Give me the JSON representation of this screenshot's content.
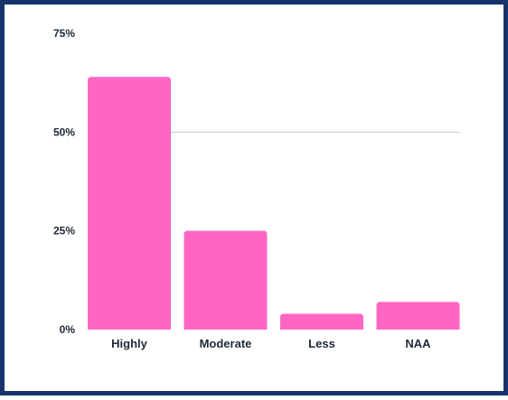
{
  "colors": {
    "bar": "#ff66c4",
    "gridline": "#c8c8c8",
    "frame": "#16336b",
    "text": "#1f2937"
  },
  "chart_data": {
    "type": "bar",
    "categories": [
      "Highly",
      "Moderate",
      "Less",
      "NAA"
    ],
    "values": [
      64,
      25,
      4,
      7
    ],
    "ylim": [
      0,
      75
    ],
    "yticks": [
      0,
      25,
      50,
      75
    ],
    "ytick_labels": [
      "0%",
      "25%",
      "50%",
      "75%"
    ],
    "gridlines": [
      50
    ],
    "grid": "horizontal",
    "legend": "none"
  }
}
